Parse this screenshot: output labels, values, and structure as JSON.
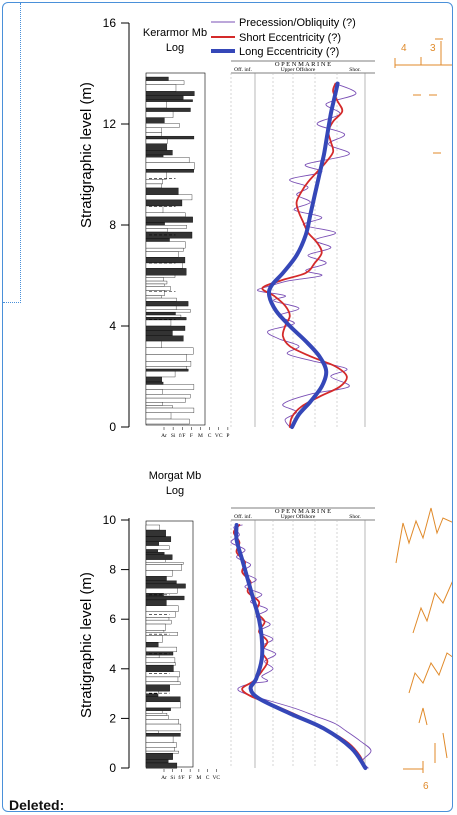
{
  "frame": {
    "border_color": "#4a90d9"
  },
  "footer": {
    "deleted_label": "Deleted:"
  },
  "side_numbers": {
    "top_left": "4",
    "top_right": "3",
    "bottom": "6"
  },
  "colors": {
    "precession": "#7a4fb5",
    "short": "#d42a2a",
    "long": "#3547b8",
    "side": "#e08a2a"
  },
  "chart_data": [
    {
      "type": "line",
      "panel": "Kerarmor",
      "log_title": [
        "Kerarmor Mb",
        "Log"
      ],
      "ylabel": "Stratigraphic level (m)",
      "ylim": [
        0,
        16
      ],
      "y_ticks": [
        "0",
        "4",
        "8",
        "12",
        "16"
      ],
      "grain_labels": [
        "Ar",
        "Si",
        "f/F",
        "F",
        "M",
        "C",
        "VC",
        "P"
      ],
      "environment_header": {
        "title": "O P E N   M A R I N E",
        "left": "Off. inf.",
        "middle": "Upper Offshore",
        "right": "Shor."
      },
      "legend": [
        "Precession/Obliquity (?)",
        "Short Eccentricity (?)",
        "Long Eccentricity (?)"
      ],
      "legend_placement": "top-right",
      "series": [
        {
          "name": "Precession/Obliquity (?)",
          "points": [
            [
              0.34,
              0.0
            ],
            [
              0.3,
              0.3
            ],
            [
              0.4,
              0.6
            ],
            [
              0.28,
              0.9
            ],
            [
              0.52,
              1.3
            ],
            [
              0.86,
              1.6
            ],
            [
              0.7,
              2.0
            ],
            [
              0.84,
              2.3
            ],
            [
              0.56,
              2.6
            ],
            [
              0.32,
              2.9
            ],
            [
              0.42,
              3.2
            ],
            [
              0.24,
              3.5
            ],
            [
              0.15,
              3.8
            ],
            [
              0.38,
              4.1
            ],
            [
              0.24,
              4.4
            ],
            [
              0.42,
              4.7
            ],
            [
              0.2,
              5.0
            ],
            [
              0.3,
              5.2
            ],
            [
              0.06,
              5.4
            ],
            [
              0.18,
              5.6
            ],
            [
              0.34,
              5.8
            ],
            [
              0.62,
              6.0
            ],
            [
              0.48,
              6.2
            ],
            [
              0.66,
              6.5
            ],
            [
              0.5,
              6.8
            ],
            [
              0.7,
              7.1
            ],
            [
              0.56,
              7.4
            ],
            [
              0.74,
              7.7
            ],
            [
              0.46,
              8.0
            ],
            [
              0.62,
              8.3
            ],
            [
              0.38,
              8.6
            ],
            [
              0.52,
              8.9
            ],
            [
              0.4,
              9.2
            ],
            [
              0.5,
              9.5
            ],
            [
              0.34,
              9.8
            ],
            [
              0.62,
              10.1
            ],
            [
              0.48,
              10.4
            ],
            [
              0.86,
              10.8
            ],
            [
              0.68,
              11.2
            ],
            [
              0.82,
              11.6
            ],
            [
              0.58,
              12.0
            ],
            [
              0.78,
              12.4
            ],
            [
              0.66,
              12.8
            ],
            [
              0.92,
              13.2
            ],
            [
              0.74,
              13.6
            ]
          ]
        },
        {
          "name": "Short Eccentricity (?)",
          "points": [
            [
              0.34,
              0.0
            ],
            [
              0.36,
              0.4
            ],
            [
              0.44,
              0.8
            ],
            [
              0.6,
              1.2
            ],
            [
              0.78,
              1.6
            ],
            [
              0.84,
              2.0
            ],
            [
              0.74,
              2.4
            ],
            [
              0.52,
              2.8
            ],
            [
              0.34,
              3.2
            ],
            [
              0.28,
              3.6
            ],
            [
              0.3,
              4.0
            ],
            [
              0.34,
              4.4
            ],
            [
              0.3,
              4.8
            ],
            [
              0.2,
              5.2
            ],
            [
              0.1,
              5.5
            ],
            [
              0.26,
              5.8
            ],
            [
              0.48,
              6.1
            ],
            [
              0.56,
              6.5
            ],
            [
              0.62,
              6.9
            ],
            [
              0.58,
              7.3
            ],
            [
              0.5,
              7.7
            ],
            [
              0.46,
              8.1
            ],
            [
              0.42,
              8.5
            ],
            [
              0.4,
              8.9
            ],
            [
              0.44,
              9.3
            ],
            [
              0.5,
              9.7
            ],
            [
              0.58,
              10.1
            ],
            [
              0.66,
              10.5
            ],
            [
              0.72,
              10.9
            ],
            [
              0.7,
              11.3
            ],
            [
              0.68,
              11.7
            ],
            [
              0.72,
              12.1
            ],
            [
              0.8,
              12.5
            ],
            [
              0.76,
              12.9
            ],
            [
              0.72,
              13.3
            ],
            [
              0.74,
              13.6
            ]
          ]
        },
        {
          "name": "Long Eccentricity (?)",
          "points": [
            [
              0.36,
              0.0
            ],
            [
              0.42,
              0.5
            ],
            [
              0.52,
              1.0
            ],
            [
              0.62,
              1.6
            ],
            [
              0.66,
              2.2
            ],
            [
              0.6,
              2.8
            ],
            [
              0.48,
              3.4
            ],
            [
              0.34,
              4.0
            ],
            [
              0.22,
              4.6
            ],
            [
              0.16,
              5.2
            ],
            [
              0.18,
              5.6
            ],
            [
              0.28,
              6.1
            ],
            [
              0.4,
              6.8
            ],
            [
              0.48,
              7.6
            ],
            [
              0.52,
              8.4
            ],
            [
              0.56,
              9.2
            ],
            [
              0.6,
              10.0
            ],
            [
              0.64,
              10.8
            ],
            [
              0.67,
              11.6
            ],
            [
              0.7,
              12.4
            ],
            [
              0.73,
              13.0
            ],
            [
              0.76,
              13.6
            ]
          ]
        }
      ]
    },
    {
      "type": "line",
      "panel": "Morgat",
      "log_title": [
        "Morgat Mb",
        "Log"
      ],
      "ylabel": "Stratigraphic level (m)",
      "ylim": [
        0,
        10
      ],
      "y_ticks": [
        "0",
        "2",
        "4",
        "6",
        "8",
        "10"
      ],
      "grain_labels": [
        "Ar",
        "Si",
        "f/F",
        "F",
        "M",
        "C",
        "VC"
      ],
      "environment_header": {
        "title": "O P E N   M A R I N E",
        "left": "Off. inf.",
        "middle": "Upper Offshore",
        "right": "Shor."
      },
      "series": [
        {
          "name": "Precession/Obliquity (?)",
          "points": [
            [
              0.98,
              0.0
            ],
            [
              0.94,
              0.3
            ],
            [
              1.0,
              0.7
            ],
            [
              0.92,
              1.1
            ],
            [
              0.82,
              1.5
            ],
            [
              0.74,
              1.8
            ],
            [
              0.6,
              2.1
            ],
            [
              0.46,
              2.4
            ],
            [
              0.28,
              2.7
            ],
            [
              0.1,
              3.0
            ],
            [
              0.05,
              3.2
            ],
            [
              0.14,
              3.4
            ],
            [
              0.26,
              3.5
            ],
            [
              0.22,
              3.7
            ],
            [
              0.3,
              4.0
            ],
            [
              0.24,
              4.3
            ],
            [
              0.32,
              4.6
            ],
            [
              0.22,
              4.9
            ],
            [
              0.3,
              5.2
            ],
            [
              0.2,
              5.5
            ],
            [
              0.28,
              5.8
            ],
            [
              0.18,
              6.1
            ],
            [
              0.26,
              6.4
            ],
            [
              0.14,
              6.7
            ],
            [
              0.22,
              7.0
            ],
            [
              0.1,
              7.3
            ],
            [
              0.18,
              7.6
            ],
            [
              0.08,
              7.9
            ],
            [
              0.14,
              8.2
            ],
            [
              0.04,
              8.5
            ],
            [
              0.1,
              8.8
            ],
            [
              0.0,
              9.1
            ],
            [
              0.06,
              9.4
            ],
            [
              0.02,
              9.7
            ],
            [
              0.08,
              9.8
            ]
          ]
        },
        {
          "name": "Short Eccentricity (?)",
          "points": [
            [
              0.96,
              0.0
            ],
            [
              0.92,
              0.5
            ],
            [
              0.84,
              1.0
            ],
            [
              0.7,
              1.5
            ],
            [
              0.52,
              2.0
            ],
            [
              0.32,
              2.5
            ],
            [
              0.14,
              2.9
            ],
            [
              0.08,
              3.2
            ],
            [
              0.16,
              3.5
            ],
            [
              0.22,
              3.9
            ],
            [
              0.26,
              4.3
            ],
            [
              0.22,
              4.7
            ],
            [
              0.26,
              5.1
            ],
            [
              0.2,
              5.5
            ],
            [
              0.24,
              5.9
            ],
            [
              0.18,
              6.3
            ],
            [
              0.2,
              6.7
            ],
            [
              0.12,
              7.1
            ],
            [
              0.14,
              7.5
            ],
            [
              0.08,
              7.9
            ],
            [
              0.1,
              8.3
            ],
            [
              0.04,
              8.7
            ],
            [
              0.06,
              9.1
            ],
            [
              0.02,
              9.5
            ],
            [
              0.06,
              9.8
            ]
          ]
        },
        {
          "name": "Long Eccentricity (?)",
          "points": [
            [
              0.96,
              0.0
            ],
            [
              0.86,
              0.8
            ],
            [
              0.66,
              1.6
            ],
            [
              0.42,
              2.2
            ],
            [
              0.2,
              2.8
            ],
            [
              0.14,
              3.2
            ],
            [
              0.18,
              3.6
            ],
            [
              0.22,
              4.4
            ],
            [
              0.22,
              5.2
            ],
            [
              0.2,
              6.0
            ],
            [
              0.16,
              6.8
            ],
            [
              0.12,
              7.6
            ],
            [
              0.08,
              8.4
            ],
            [
              0.04,
              9.2
            ],
            [
              0.04,
              9.8
            ]
          ]
        }
      ]
    }
  ]
}
